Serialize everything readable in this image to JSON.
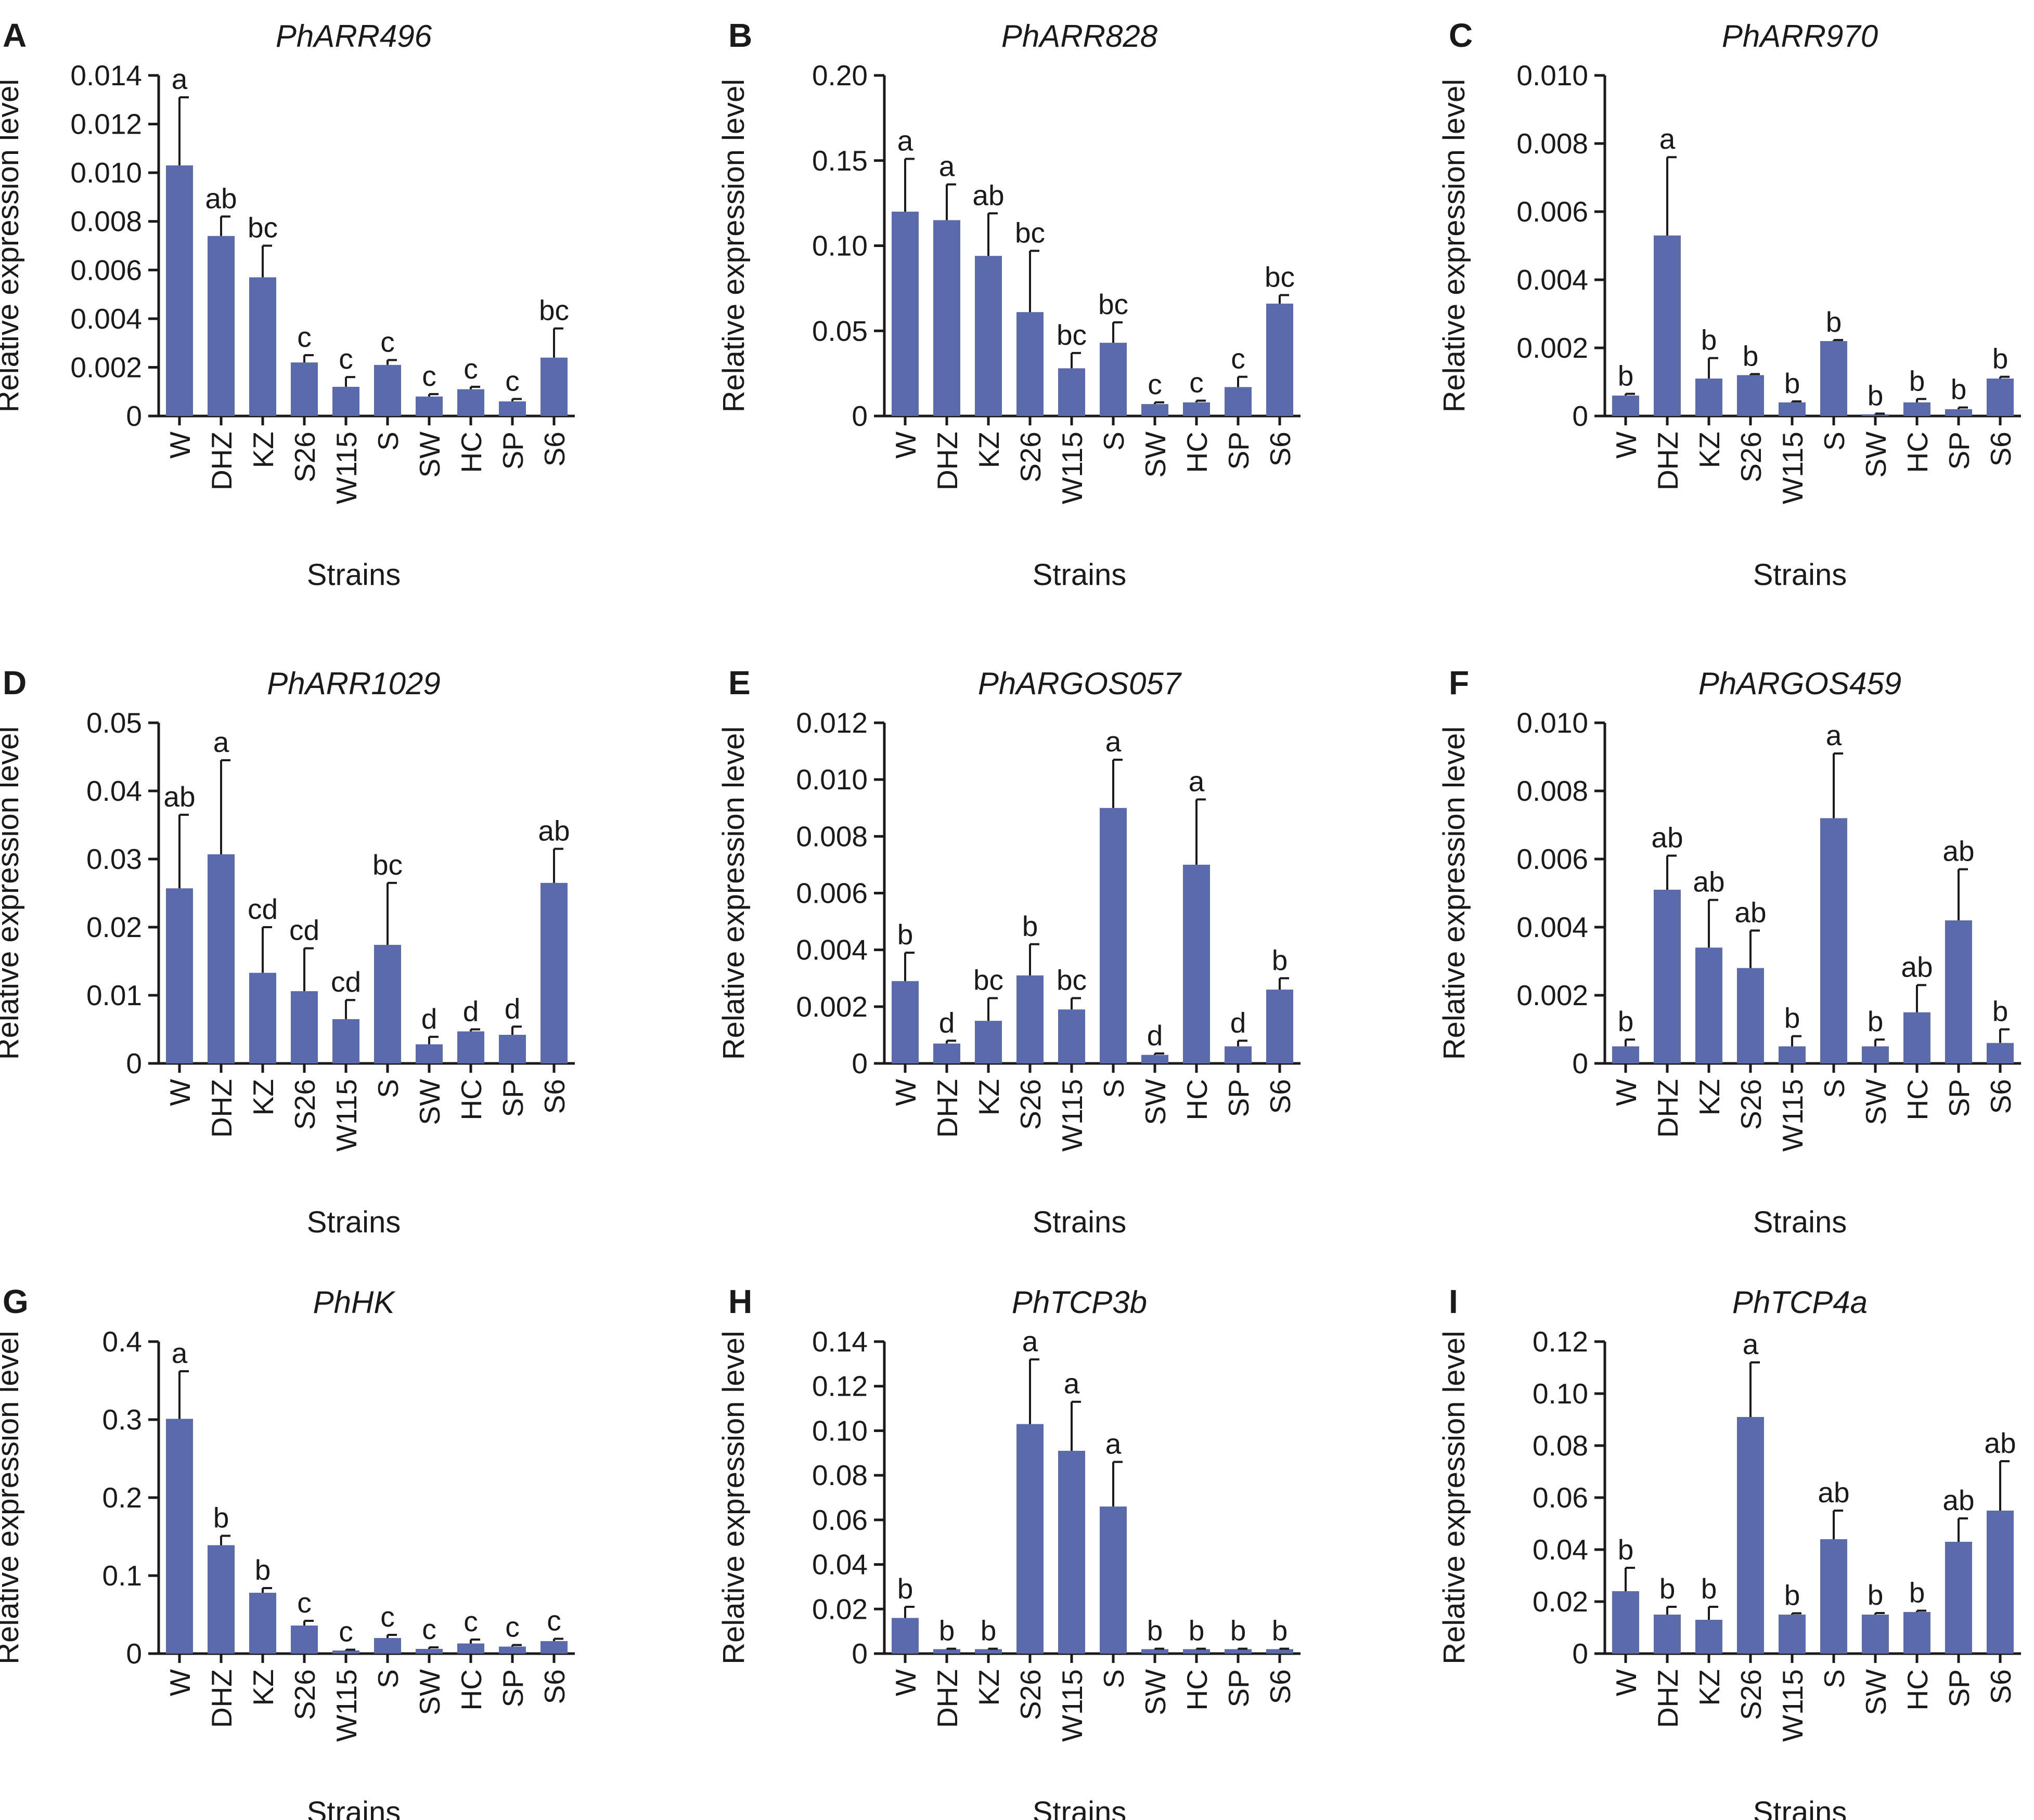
{
  "colors": {
    "bar": "#5a6aaa",
    "axis": "#1a1a1a",
    "text": "#1a1a1a"
  },
  "chart_data": [
    {
      "panel": "A",
      "type": "bar",
      "title": "PhARR496",
      "xlabel": "Strains",
      "ylabel": "Relative expression level",
      "categories": [
        "W",
        "DHZ",
        "KZ",
        "S26",
        "W115",
        "S",
        "SW",
        "HC",
        "SP",
        "S6"
      ],
      "values": [
        0.0103,
        0.0074,
        0.0057,
        0.0022,
        0.0012,
        0.0021,
        0.0008,
        0.0011,
        0.0006,
        0.0024
      ],
      "errors": [
        0.0028,
        0.0008,
        0.0013,
        0.0003,
        0.0004,
        0.0002,
        0.0001,
        0.0001,
        0.0001,
        0.0012
      ],
      "significance": [
        "a",
        "ab",
        "bc",
        "c",
        "c",
        "c",
        "c",
        "c",
        "c",
        "bc"
      ],
      "ylim": [
        0,
        0.014
      ],
      "yticks": [
        0,
        0.002,
        0.004,
        0.006,
        0.008,
        0.01,
        0.012,
        0.014
      ],
      "ytick_labels": [
        "0",
        "0.002",
        "0.004",
        "0.006",
        "0.008",
        "0.010",
        "0.012",
        "0.014"
      ]
    },
    {
      "panel": "B",
      "type": "bar",
      "title": "PhARR828",
      "xlabel": "Strains",
      "ylabel": "Relative expression level",
      "categories": [
        "W",
        "DHZ",
        "KZ",
        "S26",
        "W115",
        "S",
        "SW",
        "HC",
        "SP",
        "S6"
      ],
      "values": [
        0.12,
        0.115,
        0.094,
        0.061,
        0.028,
        0.043,
        0.007,
        0.008,
        0.017,
        0.066
      ],
      "errors": [
        0.031,
        0.021,
        0.025,
        0.036,
        0.009,
        0.012,
        0.001,
        0.001,
        0.006,
        0.005
      ],
      "significance": [
        "a",
        "a",
        "ab",
        "bc",
        "bc",
        "bc",
        "c",
        "c",
        "c",
        "bc"
      ],
      "ylim": [
        0,
        0.2
      ],
      "yticks": [
        0,
        0.05,
        0.1,
        0.15,
        0.2
      ],
      "ytick_labels": [
        "0",
        "0.05",
        "0.10",
        "0.15",
        "0.20"
      ]
    },
    {
      "panel": "C",
      "type": "bar",
      "title": "PhARR970",
      "xlabel": "Strains",
      "ylabel": "Relative expression level",
      "categories": [
        "W",
        "DHZ",
        "KZ",
        "S26",
        "W115",
        "S",
        "SW",
        "HC",
        "SP",
        "S6"
      ],
      "values": [
        0.0006,
        0.0053,
        0.0011,
        0.0012,
        0.0004,
        0.0022,
        5e-05,
        0.0004,
        0.0002,
        0.0011
      ],
      "errors": [
        5e-05,
        0.0023,
        0.0006,
        3e-05,
        3e-05,
        3e-05,
        2e-05,
        0.0001,
        5e-05,
        5e-05
      ],
      "significance": [
        "b",
        "a",
        "b",
        "b",
        "b",
        "b",
        "b",
        "b",
        "b",
        "b"
      ],
      "ylim": [
        0,
        0.01
      ],
      "yticks": [
        0,
        0.002,
        0.004,
        0.006,
        0.008,
        0.01
      ],
      "ytick_labels": [
        "0",
        "0.002",
        "0.004",
        "0.006",
        "0.008",
        "0.010"
      ]
    },
    {
      "panel": "D",
      "type": "bar",
      "title": "PhARR1029",
      "xlabel": "Strains",
      "ylabel": "Relative expression level",
      "categories": [
        "W",
        "DHZ",
        "KZ",
        "S26",
        "W115",
        "S",
        "SW",
        "HC",
        "SP",
        "S6"
      ],
      "values": [
        0.0257,
        0.0307,
        0.0133,
        0.0106,
        0.0065,
        0.0174,
        0.0028,
        0.0047,
        0.0042,
        0.0265
      ],
      "errors": [
        0.0108,
        0.0138,
        0.0067,
        0.0063,
        0.0028,
        0.0091,
        0.0011,
        0.0003,
        0.0012,
        0.005
      ],
      "significance": [
        "ab",
        "a",
        "cd",
        "cd",
        "cd",
        "bc",
        "d",
        "d",
        "d",
        "ab"
      ],
      "ylim": [
        0,
        0.05
      ],
      "yticks": [
        0,
        0.01,
        0.02,
        0.03,
        0.04,
        0.05
      ],
      "ytick_labels": [
        "0",
        "0.01",
        "0.02",
        "0.03",
        "0.04",
        "0.05"
      ]
    },
    {
      "panel": "E",
      "type": "bar",
      "title": "PhARGOS057",
      "xlabel": "Strains",
      "ylabel": "Relative expression level",
      "categories": [
        "W",
        "DHZ",
        "KZ",
        "S26",
        "W115",
        "S",
        "SW",
        "HC",
        "SP",
        "S6"
      ],
      "values": [
        0.0029,
        0.0007,
        0.0015,
        0.0031,
        0.0019,
        0.009,
        0.0003,
        0.007,
        0.0006,
        0.0026
      ],
      "errors": [
        0.001,
        0.0001,
        0.0008,
        0.0011,
        0.0004,
        0.0017,
        5e-05,
        0.0023,
        0.0002,
        0.0004
      ],
      "significance": [
        "b",
        "d",
        "bc",
        "b",
        "bc",
        "a",
        "d",
        "a",
        "d",
        "b"
      ],
      "ylim": [
        0,
        0.012
      ],
      "yticks": [
        0,
        0.002,
        0.004,
        0.006,
        0.008,
        0.01,
        0.012
      ],
      "ytick_labels": [
        "0",
        "0.002",
        "0.004",
        "0.006",
        "0.008",
        "0.010",
        "0.012"
      ]
    },
    {
      "panel": "F",
      "type": "bar",
      "title": "PhARGOS459",
      "xlabel": "Strains",
      "ylabel": "Relative expression level",
      "categories": [
        "W",
        "DHZ",
        "KZ",
        "S26",
        "W115",
        "S",
        "SW",
        "HC",
        "SP",
        "S6"
      ],
      "values": [
        0.0005,
        0.0051,
        0.0034,
        0.0028,
        0.0005,
        0.0072,
        0.0005,
        0.0015,
        0.0042,
        0.0006
      ],
      "errors": [
        0.0002,
        0.001,
        0.0014,
        0.0011,
        0.0003,
        0.0019,
        0.0002,
        0.0008,
        0.0015,
        0.0004
      ],
      "significance": [
        "b",
        "ab",
        "ab",
        "ab",
        "b",
        "a",
        "b",
        "ab",
        "ab",
        "b"
      ],
      "ylim": [
        0,
        0.01
      ],
      "yticks": [
        0,
        0.002,
        0.004,
        0.006,
        0.008,
        0.01
      ],
      "ytick_labels": [
        "0",
        "0.002",
        "0.004",
        "0.006",
        "0.008",
        "0.010"
      ]
    },
    {
      "panel": "G",
      "type": "bar",
      "title": "PhHK",
      "xlabel": "Strains",
      "ylabel": "Relative expression level",
      "categories": [
        "W",
        "DHZ",
        "KZ",
        "S26",
        "W115",
        "S",
        "SW",
        "HC",
        "SP",
        "S6"
      ],
      "values": [
        0.301,
        0.139,
        0.078,
        0.036,
        0.004,
        0.02,
        0.006,
        0.013,
        0.009,
        0.016
      ],
      "errors": [
        0.061,
        0.012,
        0.006,
        0.006,
        0.001,
        0.004,
        0.002,
        0.005,
        0.002,
        0.003
      ],
      "significance": [
        "a",
        "b",
        "b",
        "c",
        "c",
        "c",
        "c",
        "c",
        "c",
        "c"
      ],
      "ylim": [
        0,
        0.4
      ],
      "yticks": [
        0,
        0.1,
        0.2,
        0.3,
        0.4
      ],
      "ytick_labels": [
        "0",
        "0.1",
        "0.2",
        "0.3",
        "0.4"
      ]
    },
    {
      "panel": "H",
      "type": "bar",
      "title": "PhTCP3b",
      "xlabel": "Strains",
      "ylabel": "Relative expression level",
      "categories": [
        "W",
        "DHZ",
        "KZ",
        "S26",
        "W115",
        "S",
        "SW",
        "HC",
        "SP",
        "S6"
      ],
      "values": [
        0.016,
        0.002,
        0.002,
        0.103,
        0.091,
        0.066,
        0.002,
        0.002,
        0.002,
        0.002
      ],
      "errors": [
        0.005,
        0.0002,
        0.0002,
        0.029,
        0.022,
        0.02,
        0.0002,
        0.0002,
        0.0002,
        0.0002
      ],
      "significance": [
        "b",
        "b",
        "b",
        "a",
        "a",
        "a",
        "b",
        "b",
        "b",
        "b"
      ],
      "ylim": [
        0,
        0.14
      ],
      "yticks": [
        0,
        0.02,
        0.04,
        0.06,
        0.08,
        0.1,
        0.12,
        0.14
      ],
      "ytick_labels": [
        "0",
        "0.02",
        "0.04",
        "0.06",
        "0.08",
        "0.10",
        "0.12",
        "0.14"
      ]
    },
    {
      "panel": "I",
      "type": "bar",
      "title": "PhTCP4a",
      "xlabel": "Strains",
      "ylabel": "Relative expression level",
      "categories": [
        "W",
        "DHZ",
        "KZ",
        "S26",
        "W115",
        "S",
        "SW",
        "HC",
        "SP",
        "S6"
      ],
      "values": [
        0.024,
        0.015,
        0.013,
        0.091,
        0.015,
        0.044,
        0.015,
        0.016,
        0.043,
        0.055
      ],
      "errors": [
        0.009,
        0.003,
        0.005,
        0.021,
        0.0005,
        0.011,
        0.0006,
        0.0005,
        0.009,
        0.019
      ],
      "significance": [
        "b",
        "b",
        "b",
        "a",
        "b",
        "ab",
        "b",
        "b",
        "ab",
        "ab"
      ],
      "ylim": [
        0,
        0.12
      ],
      "yticks": [
        0,
        0.02,
        0.04,
        0.06,
        0.08,
        0.1,
        0.12
      ],
      "ytick_labels": [
        "0",
        "0.02",
        "0.04",
        "0.06",
        "0.08",
        "0.10",
        "0.12"
      ]
    }
  ]
}
